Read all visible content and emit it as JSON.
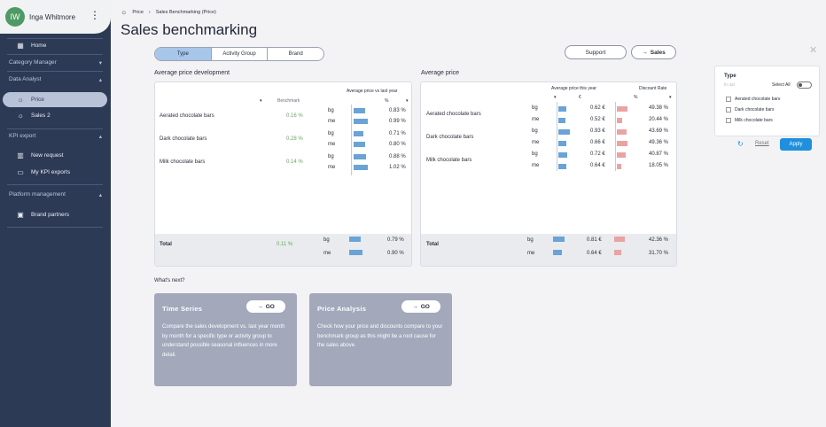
{
  "user": {
    "initials": "IW",
    "name": "Inga Whitmore"
  },
  "sidebar": {
    "home": "Home",
    "category_manager": "Category Manager",
    "data_analyst": "Data Analyst",
    "price": "Price",
    "sales2": "Sales 2",
    "kpi_export": "KPI export",
    "new_request": "New request",
    "my_kpi_exports": "My KPI exports",
    "platform_management": "Platform management",
    "brand_partners": "Brand partners"
  },
  "breadcrumb": {
    "root": "Price",
    "current": "Sales Benchmarking (Price)"
  },
  "page_title": "Sales benchmarking",
  "tabs": [
    "Type",
    "Activity Group",
    "Brand"
  ],
  "buttons": {
    "support": "Support",
    "sales": "Sales"
  },
  "left_panel": {
    "title": "Average price development",
    "col_benchmark": "Benchmark",
    "col_avg": "Average price vs last year",
    "col_unit": "%",
    "rows": [
      {
        "name": "Aerated chocolate bars",
        "benchmark": "0.16 %",
        "bg": "0.83 %",
        "me": "0.99 %"
      },
      {
        "name": "Dark chocolate bars",
        "benchmark": "0.28 %",
        "bg": "0.71 %",
        "me": "0.80 %"
      },
      {
        "name": "Milk chocolate bars",
        "benchmark": "0.14 %",
        "bg": "0.88 %",
        "me": "1.02 %"
      }
    ],
    "total": {
      "label": "Total",
      "benchmark": "0.11 %",
      "bg": "0.79 %",
      "me": "0.90 %"
    }
  },
  "right_panel": {
    "title": "Average price",
    "col_avg": "Average price this year",
    "col_disc": "Discount Rate",
    "col_unit_avg": "€",
    "col_unit_disc": "%",
    "rows": [
      {
        "name": "Aerated chocolate bars",
        "bg_price": "0.62 €",
        "bg_disc": "49.38 %",
        "me_price": "0.52 €",
        "me_disc": "20.44 %"
      },
      {
        "name": "Dark chocolate bars",
        "bg_price": "0.93 €",
        "bg_disc": "43.69 %",
        "me_price": "0.66 €",
        "me_disc": "49.36 %"
      },
      {
        "name": "Milk chocolate bars",
        "bg_price": "0.72 €",
        "bg_disc": "40.87 %",
        "me_price": "0.64 €",
        "me_disc": "18.05 %"
      }
    ],
    "total": {
      "label": "Total",
      "bg_price": "0.81 €",
      "bg_disc": "42.36 %",
      "me_price": "0.64 €",
      "me_disc": "31.70 %"
    }
  },
  "labels": {
    "bg": "bg",
    "me": "me"
  },
  "whats_next": {
    "heading": "What's next?",
    "cards": [
      {
        "title": "Time Series",
        "go": "GO",
        "text": "Compare the sales development vs. last year month by month for a specific type or activity group to understand possible seasonal influences in more detail."
      },
      {
        "title": "Price Analysis",
        "go": "GO",
        "text": "Check how your price and discounts compare to your benchmark group as this might be a root cause for the sales above."
      }
    ]
  },
  "filter": {
    "title": "Type",
    "faint": "in ust",
    "select_all": "Select All",
    "options": [
      "Aerated chocolate bars",
      "Dark chocolate bars",
      "Milk chocolate bars"
    ],
    "reset": "Reset",
    "apply": "Apply"
  }
}
